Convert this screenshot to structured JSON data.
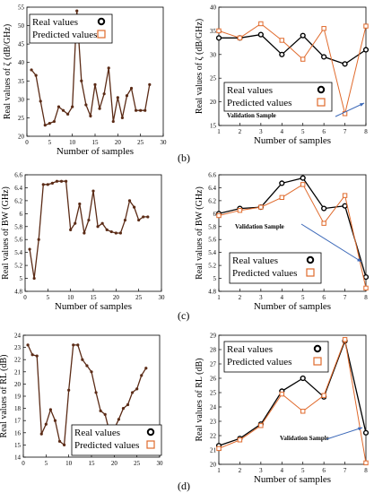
{
  "colors": {
    "real": "#000000",
    "predicted": "#e06a2c",
    "line_real": "#5b2b16",
    "arrow": "#3b68b8",
    "axis": "#000000"
  },
  "panel_labels": [
    "(b)",
    "(c)",
    "(d)"
  ],
  "legend": {
    "real": "Real values",
    "predicted": "Predicted values"
  },
  "chart_data": [
    {
      "id": "b-left",
      "type": "line",
      "xlabel": "Number of samples",
      "ylabel": "Real values of ζ (dB/GHz)",
      "xlim": [
        0,
        30
      ],
      "ylim": [
        20,
        55
      ],
      "xticks": [
        0,
        5,
        10,
        15,
        20,
        25,
        30
      ],
      "yticks": [
        20,
        25,
        30,
        35,
        40,
        45,
        50,
        55
      ],
      "legend": [
        "real",
        "predicted"
      ],
      "series": [
        {
          "role": "real",
          "x": [
            1,
            2,
            3,
            4,
            5,
            6,
            7,
            8,
            9,
            10,
            11,
            12,
            13,
            14,
            15,
            16,
            17,
            18,
            19,
            20,
            21,
            22,
            23,
            24,
            25,
            26,
            27
          ],
          "values": [
            38,
            36.5,
            29.5,
            23,
            23.5,
            24,
            28,
            27,
            26,
            28,
            54,
            35,
            28.5,
            25.5,
            34,
            27.5,
            31.5,
            38.5,
            24,
            30.5,
            25,
            31,
            33,
            27,
            27,
            27,
            34
          ]
        }
      ]
    },
    {
      "id": "b-right",
      "type": "line",
      "xlabel": "Number of samples",
      "ylabel": "Real values of ζ (dB/GHz)",
      "xlim": [
        1,
        8
      ],
      "ylim": [
        15,
        40
      ],
      "xticks": [
        1,
        2,
        3,
        4,
        5,
        6,
        7,
        8
      ],
      "yticks": [
        15,
        20,
        25,
        30,
        35,
        40
      ],
      "legend": [
        "real",
        "predicted"
      ],
      "annotation": "Validation Sample",
      "series": [
        {
          "role": "real",
          "x": [
            1,
            2,
            3,
            4,
            5,
            6,
            7,
            8
          ],
          "values": [
            33.5,
            33.5,
            34.2,
            30,
            34,
            29.5,
            28,
            31
          ]
        },
        {
          "role": "predicted",
          "x": [
            1,
            2,
            3,
            4,
            5,
            6,
            7,
            8
          ],
          "values": [
            35,
            33.5,
            36.5,
            33,
            29,
            35.5,
            17.5,
            36
          ]
        }
      ]
    },
    {
      "id": "c-left",
      "type": "line",
      "xlabel": "Number of samples",
      "ylabel": "Real values of BW (GHz)",
      "xlim": [
        0,
        30
      ],
      "ylim": [
        4.8,
        6.6
      ],
      "xticks": [
        0,
        5,
        10,
        15,
        20,
        25,
        30
      ],
      "yticks": [
        4.8,
        5,
        5.2,
        5.4,
        5.6,
        5.8,
        6,
        6.2,
        6.4,
        6.6
      ],
      "legend": [],
      "series": [
        {
          "role": "real",
          "x": [
            1,
            2,
            3,
            4,
            5,
            6,
            7,
            8,
            9,
            10,
            11,
            12,
            13,
            14,
            15,
            16,
            17,
            18,
            19,
            20,
            21,
            22,
            23,
            24,
            25,
            26,
            27
          ],
          "values": [
            5.45,
            5,
            5.6,
            6.45,
            6.45,
            6.47,
            6.5,
            6.5,
            6.5,
            5.75,
            5.85,
            6.15,
            5.7,
            5.9,
            6.35,
            5.8,
            5.85,
            5.75,
            5.72,
            5.7,
            5.7,
            5.9,
            6.2,
            6.1,
            5.9,
            5.95,
            5.95
          ]
        }
      ]
    },
    {
      "id": "c-right",
      "type": "line",
      "xlabel": "Number of samples",
      "ylabel": "Real values of BW (GHz)",
      "xlim": [
        1,
        8
      ],
      "ylim": [
        4.8,
        6.6
      ],
      "xticks": [
        1,
        2,
        3,
        4,
        5,
        6,
        7,
        8
      ],
      "yticks": [
        4.8,
        5,
        5.2,
        5.4,
        5.6,
        5.8,
        6,
        6.2,
        6.4,
        6.6
      ],
      "legend": [
        "real",
        "predicted"
      ],
      "annotation": "Validation Sample",
      "series": [
        {
          "role": "real",
          "x": [
            1,
            2,
            3,
            4,
            5,
            6,
            7,
            8
          ],
          "values": [
            6,
            6.08,
            6.1,
            6.47,
            6.55,
            6.08,
            6.12,
            5.02
          ]
        },
        {
          "role": "predicted",
          "x": [
            1,
            2,
            3,
            4,
            5,
            6,
            7,
            8
          ],
          "values": [
            5.97,
            6.05,
            6.1,
            6.25,
            6.45,
            5.85,
            6.28,
            4.85
          ]
        }
      ]
    },
    {
      "id": "d-left",
      "type": "line",
      "xlabel": "",
      "ylabel": "Real values of RL (dB)",
      "xlim": [
        0,
        30
      ],
      "ylim": [
        14,
        24
      ],
      "xticks": [
        0,
        5,
        10,
        15,
        20,
        25,
        30
      ],
      "yticks": [
        14,
        15,
        16,
        17,
        18,
        19,
        20,
        21,
        22,
        23,
        24
      ],
      "legend": [
        "real",
        "predicted"
      ],
      "series": [
        {
          "role": "real",
          "x": [
            1,
            2,
            3,
            4,
            5,
            6,
            7,
            8,
            9,
            10,
            11,
            12,
            13,
            14,
            15,
            16,
            17,
            18,
            19,
            20,
            21,
            22,
            23,
            24,
            25,
            26,
            27
          ],
          "values": [
            23.2,
            22.4,
            22.3,
            15.9,
            16.7,
            17.9,
            17,
            15.3,
            15,
            19.5,
            23.2,
            23.2,
            22,
            21.5,
            21,
            19.3,
            17.8,
            17.5,
            16,
            16.3,
            17.1,
            18,
            18.3,
            19.3,
            19.6,
            20.7,
            21.3
          ]
        }
      ]
    },
    {
      "id": "d-right",
      "type": "line",
      "xlabel": "Number of samples",
      "ylabel": "Real values of RL (dB)",
      "xlim": [
        1,
        8
      ],
      "ylim": [
        20,
        29
      ],
      "xticks": [
        1,
        2,
        3,
        4,
        5,
        6,
        7,
        8
      ],
      "yticks": [
        20,
        21,
        22,
        23,
        24,
        25,
        26,
        27,
        28,
        29
      ],
      "legend": [
        "real",
        "predicted"
      ],
      "annotation": "Validation Sample",
      "series": [
        {
          "role": "real",
          "x": [
            1,
            2,
            3,
            4,
            5,
            6,
            7,
            8
          ],
          "values": [
            21.3,
            21.8,
            22.8,
            25.1,
            26,
            24.7,
            28.6,
            22.2
          ]
        },
        {
          "role": "predicted",
          "x": [
            1,
            2,
            3,
            4,
            5,
            6,
            7,
            8
          ],
          "values": [
            21.1,
            21.7,
            22.7,
            24.9,
            23.7,
            24.8,
            28.7,
            20.1
          ]
        }
      ]
    }
  ]
}
